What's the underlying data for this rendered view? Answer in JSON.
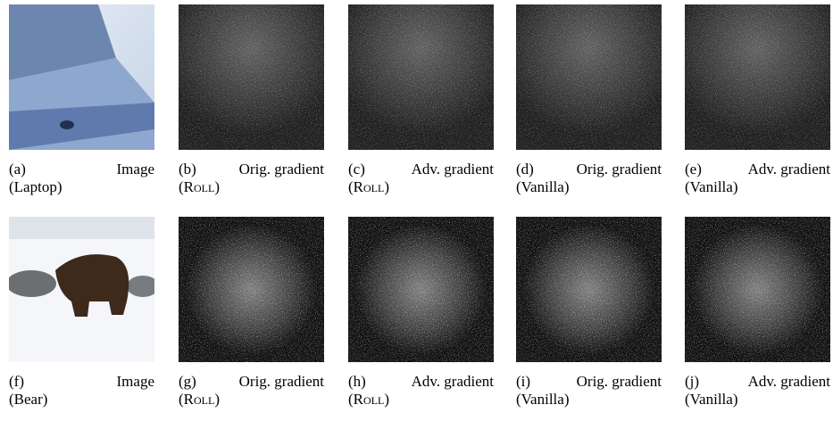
{
  "figure": {
    "panels": [
      {
        "label": "(a)",
        "caption": "Image",
        "detail": "(Laptop)"
      },
      {
        "label": "(b)",
        "caption": "Orig. gradient",
        "detail": "(Roll)"
      },
      {
        "label": "(c)",
        "caption": "Adv. gradient",
        "detail": "(Roll)"
      },
      {
        "label": "(d)",
        "caption": "Orig. gradient",
        "detail": "(Vanilla)"
      },
      {
        "label": "(e)",
        "caption": "Adv. gradient",
        "detail": "(Vanilla)"
      },
      {
        "label": "(f)",
        "caption": "Image",
        "detail": "(Bear)"
      },
      {
        "label": "(g)",
        "caption": "Orig. gradient",
        "detail": "(Roll)"
      },
      {
        "label": "(h)",
        "caption": "Adv. gradient",
        "detail": "(Roll)"
      },
      {
        "label": "(i)",
        "caption": "Orig. gradient",
        "detail": "(Vanilla)"
      },
      {
        "label": "(j)",
        "caption": "Adv. gradient",
        "detail": "(Vanilla)"
      }
    ]
  }
}
